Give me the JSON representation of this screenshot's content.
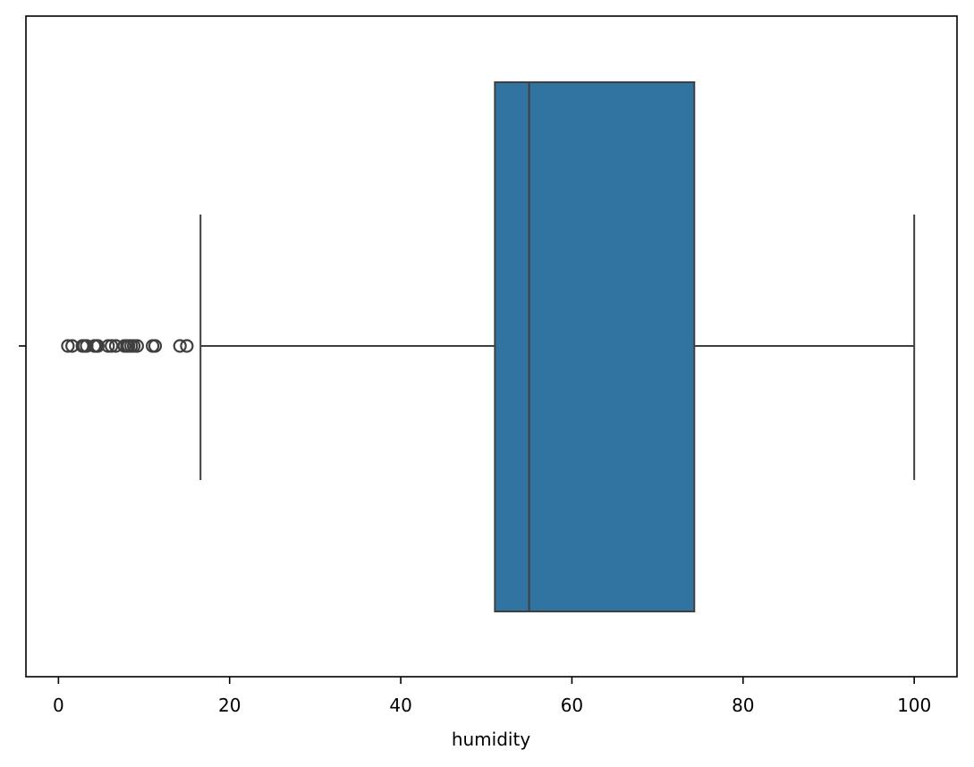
{
  "chart_data": {
    "type": "box",
    "orientation": "horizontal",
    "xlabel": "humidity",
    "ylabel": "",
    "title": "",
    "xlim": [
      -3.8,
      105
    ],
    "xticks": [
      0,
      20,
      40,
      60,
      80,
      100
    ],
    "xtick_labels": [
      "0",
      "20",
      "40",
      "60",
      "80",
      "100"
    ],
    "grid": false,
    "box": {
      "whisker_low": 16.6,
      "q1": 51.0,
      "median": 55.0,
      "q3": 74.3,
      "whisker_high": 100.0
    },
    "outliers": [
      1.1,
      1.6,
      2.8,
      3.0,
      3.3,
      4.2,
      4.4,
      4.6,
      5.8,
      6.2,
      6.7,
      7.7,
      8.0,
      8.2,
      8.5,
      8.8,
      9.2,
      11.0,
      11.3,
      14.2,
      15.0
    ],
    "colors": {
      "box_fill": "#3274a1",
      "line": "#3f3f3f",
      "axes": "#000000"
    }
  }
}
